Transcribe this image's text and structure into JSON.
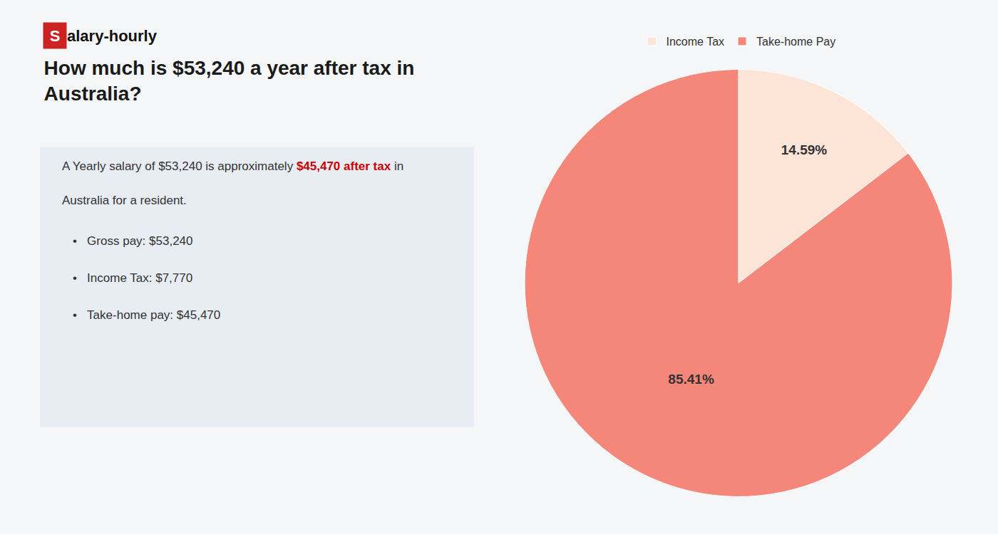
{
  "chart_data": {
    "type": "pie",
    "title": "How much is $53,240 a year after tax in\nAustralia?",
    "categories": [
      "Income Tax",
      "Take-home Pay"
    ],
    "values": [
      14.59,
      85.41
    ],
    "value_labels": [
      "14.59%",
      "85.41%"
    ],
    "colors": [
      "#fce4d6",
      "#f4877a"
    ],
    "data_labels": true,
    "legend": "top",
    "annotations": [
      [
        {
          "text": "S",
          "color": "#cc2222"
        },
        {
          "text": "alary-hourly"
        }
      ],
      [
        {
          "text": "A Yearly salary of $53,240 is approximately "
        },
        {
          "text": "$45,470 after tax",
          "color": "#cc0000"
        },
        {
          "text": " in"
        }
      ],
      [
        {
          "text": "Australia for a resident."
        }
      ],
      [
        {
          "text": "•"
        },
        {
          "text": "Gross pay: $53,240"
        }
      ],
      [
        {
          "text": "•"
        },
        {
          "text": "Income Tax: $7,770"
        }
      ],
      [
        {
          "text": "•"
        },
        {
          "text": "Take-home pay: $45,470"
        }
      ]
    ]
  }
}
